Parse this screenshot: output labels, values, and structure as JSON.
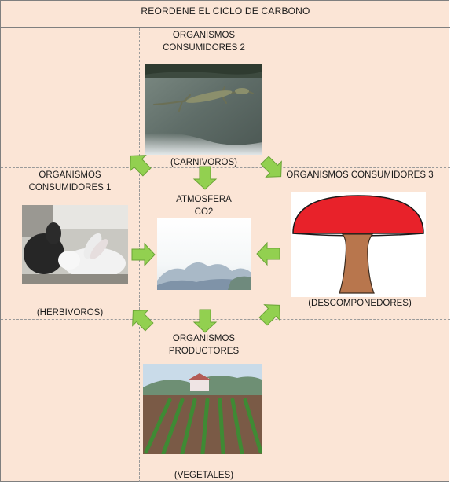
{
  "title": "REORDENE EL CICLO DE CARBONO",
  "colors": {
    "background": "#fbe5d6",
    "arrow_fill": "#92d050",
    "arrow_stroke": "#6aa336",
    "mushroom_cap": "#e8222a",
    "mushroom_stem": "#b8764d"
  },
  "nodes": {
    "consumers2": {
      "label_line1": "ORGANISMOS",
      "label_line2": "CONSUMIDORES 2",
      "caption": "(CARNIVOROS)",
      "image": "lizard-photo"
    },
    "consumers1": {
      "label_line1": "ORGANISMOS",
      "label_line2": "CONSUMIDORES 1",
      "caption": "(HERBIVOROS)",
      "image": "rabbits-photo"
    },
    "atmosphere": {
      "label_line1": "ATMOSFERA",
      "label_line2": "CO2",
      "image": "sky-mountains-photo"
    },
    "consumers3": {
      "label": "ORGANISMOS CONSUMIDORES 3",
      "caption": "(DESCOMPONEDORES)",
      "image": "mushroom-drawing"
    },
    "producers": {
      "label_line1": "ORGANISMOS",
      "label_line2": "PRODUCTORES",
      "caption": "(VEGETALES)",
      "image": "crop-field-photo"
    }
  },
  "arrows": [
    {
      "name": "arrow-down-to-atmosphere-top",
      "direction": "down"
    },
    {
      "name": "arrow-right-to-atmosphere-left",
      "direction": "right"
    },
    {
      "name": "arrow-left-to-atmosphere-right",
      "direction": "left"
    },
    {
      "name": "arrow-down-from-atmosphere",
      "direction": "down"
    },
    {
      "name": "arrow-up-left-to-consumers2",
      "direction": "up-left"
    },
    {
      "name": "arrow-down-right-to-consumers3",
      "direction": "down-right"
    },
    {
      "name": "arrow-up-right-to-consumers3",
      "direction": "up-right"
    },
    {
      "name": "arrow-down-left-to-consumers1",
      "direction": "down-left"
    }
  ]
}
